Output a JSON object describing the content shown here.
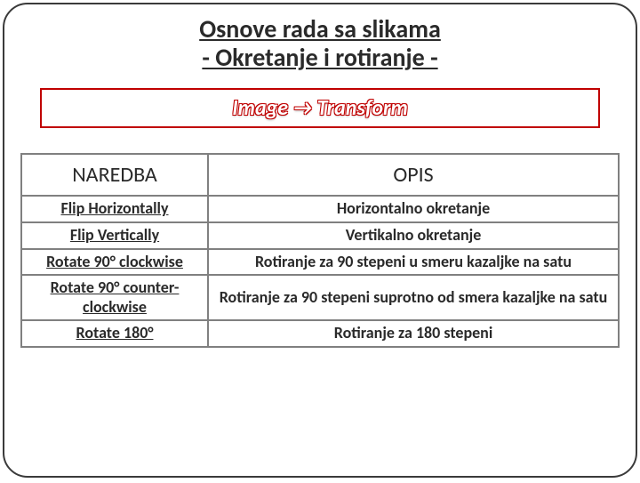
{
  "title": {
    "line1": "Osnove rada sa slikama",
    "line2": "- Okretanje i rotiranje -"
  },
  "menuPath": "Image → Transform",
  "table": {
    "headers": {
      "cmd": "NAREDBA",
      "desc": "OPIS"
    },
    "rows": [
      {
        "cmd": "Flip Horizontally",
        "desc": "Horizontalno okretanje"
      },
      {
        "cmd": "Flip Vertically",
        "desc": "Vertikalno okretanje"
      },
      {
        "cmd": "Rotate 90° clockwise",
        "desc": "Rotiranje za 90 stepeni u smeru kazaljke na satu"
      },
      {
        "cmd": "Rotate 90° counter-clockwise",
        "desc": "Rotiranje za 90 stepeni suprotno od smera kazaljke na satu"
      },
      {
        "cmd": "Rotate 180°",
        "desc": "Rotiranje za 180 stepeni"
      }
    ]
  },
  "style": {
    "slideBorderColor": "#3a3a3a",
    "slideBorderRadius": 28,
    "titleColor": "#2a2a2a",
    "titleFontSize": 28,
    "menuBoxBorderColor": "#c00000",
    "menuTextFill": "#ffffff",
    "menuTextStroke": "#c00000",
    "menuFontSize": 24,
    "tableBorderColor": "#808080",
    "headerFontSize": 24,
    "cellFontSize": 18,
    "col1Width": 210
  }
}
